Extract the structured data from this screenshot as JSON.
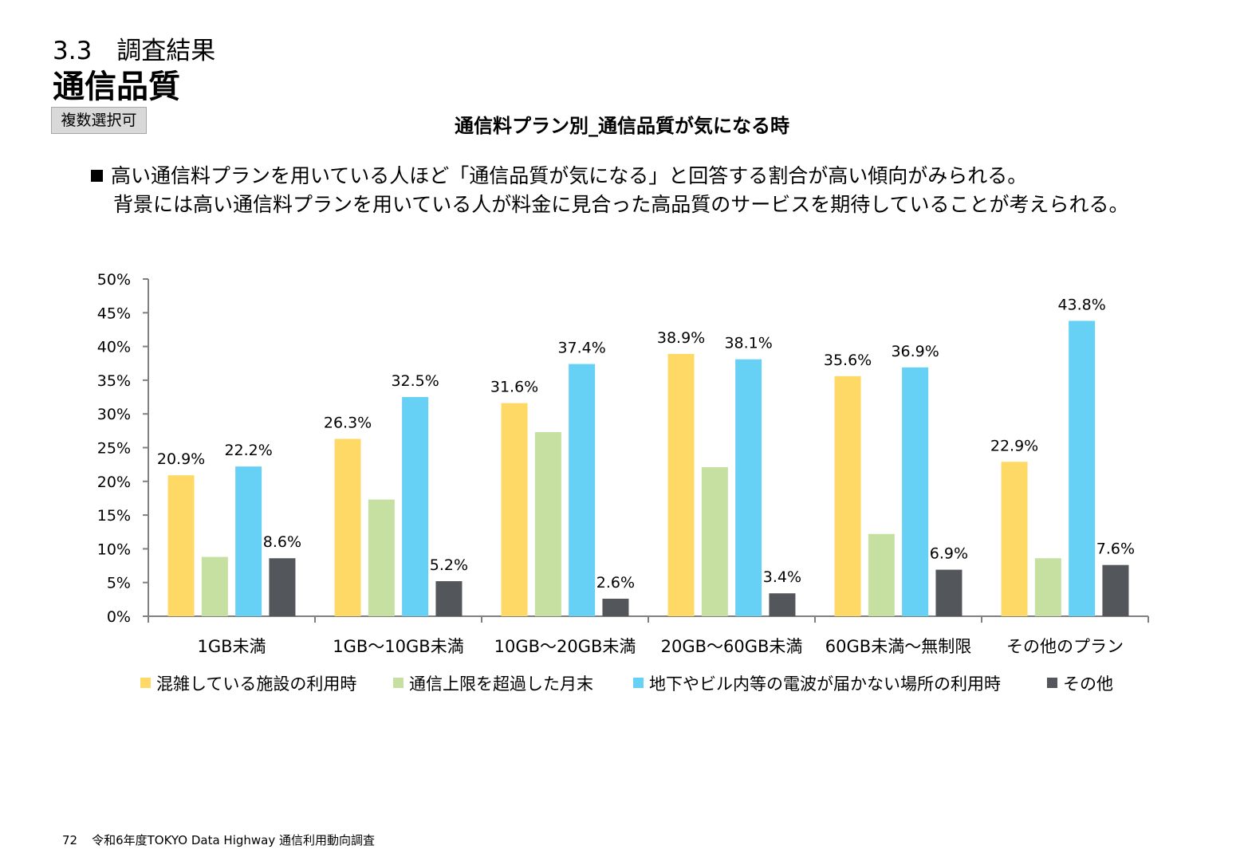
{
  "header": {
    "section": "3.3　調査結果",
    "title": "通信品質",
    "badge": "複数選択可",
    "chart_title": "通信料プラン別_通信品質が気になる時"
  },
  "summary": {
    "line1": "高い通信料プランを用いている人ほど「通信品質が気になる」と回答する割合が高い傾向がみられる。",
    "line2": "背景には高い通信料プランを用いている人が料金に見合った高品質のサービスを期待していることが考えられる。"
  },
  "footer": {
    "page": "72",
    "text": "令和6年度TOKYO Data Highway 通信利用動向調査"
  },
  "chart_data": {
    "type": "bar",
    "categories": [
      "1GB未満",
      "1GB〜10GB未満",
      "10GB〜20GB未満",
      "20GB〜60GB未満",
      "60GB未満〜無制限",
      "その他のプラン"
    ],
    "series": [
      {
        "name": "混雑している施設の利用時",
        "color": "#ffd966",
        "values": [
          20.9,
          26.3,
          31.6,
          38.9,
          35.6,
          22.9
        ],
        "labeled": [
          true,
          true,
          true,
          true,
          true,
          true
        ]
      },
      {
        "name": "通信上限を超過した月末",
        "color": "#c5e0a0",
        "values": [
          8.8,
          17.3,
          27.3,
          22.1,
          12.2,
          8.6
        ],
        "labeled": [
          false,
          false,
          false,
          false,
          false,
          false
        ]
      },
      {
        "name": "地下やビル内等の電波が届かない場所の利用時",
        "color": "#66d0f5",
        "values": [
          22.2,
          32.5,
          37.4,
          38.1,
          36.9,
          43.8
        ],
        "labeled": [
          true,
          true,
          true,
          true,
          true,
          true
        ]
      },
      {
        "name": "その他",
        "color": "#53565a",
        "values": [
          8.6,
          5.2,
          2.6,
          3.4,
          6.9,
          7.6
        ],
        "labeled": [
          true,
          true,
          true,
          true,
          true,
          true
        ]
      }
    ],
    "ylim": [
      0,
      50
    ],
    "yticks": [
      0,
      5,
      10,
      15,
      20,
      25,
      30,
      35,
      40,
      45,
      50
    ],
    "value_suffix": "%",
    "legend": "bottom",
    "grid": false
  }
}
